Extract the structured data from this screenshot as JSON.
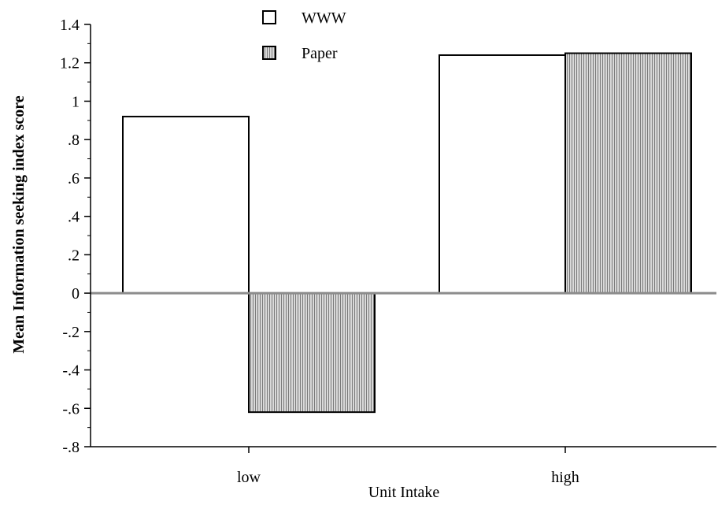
{
  "chart_data": {
    "type": "bar",
    "categories": [
      "low",
      "high"
    ],
    "series": [
      {
        "name": "WWW",
        "values": [
          0.92,
          1.24
        ],
        "fill": "#ffffff",
        "pattern": "none"
      },
      {
        "name": "Paper",
        "values": [
          -0.62,
          1.25
        ],
        "fill": "#bdbdbd",
        "pattern": "vertical-hatch"
      }
    ],
    "xlabel": "Unit Intake",
    "ylabel": "Mean Information seeking index score",
    "ylim": [
      -0.8,
      1.4
    ],
    "yticks": [
      {
        "value": 1.4,
        "label": "1.4"
      },
      {
        "value": 1.2,
        "label": "1.2"
      },
      {
        "value": 1.0,
        "label": "1"
      },
      {
        "value": 0.8,
        "label": ".8"
      },
      {
        "value": 0.6,
        "label": ".6"
      },
      {
        "value": 0.4,
        "label": ".4"
      },
      {
        "value": 0.2,
        "label": ".2"
      },
      {
        "value": 0.0,
        "label": "0"
      },
      {
        "value": -0.2,
        "label": "-.2"
      },
      {
        "value": -0.4,
        "label": "-.4"
      },
      {
        "value": -0.6,
        "label": "-.6"
      },
      {
        "value": -0.8,
        "label": "-.8"
      }
    ],
    "zero_line_color": "#8c8c8c",
    "grid": false,
    "legend_position": "top-center"
  }
}
